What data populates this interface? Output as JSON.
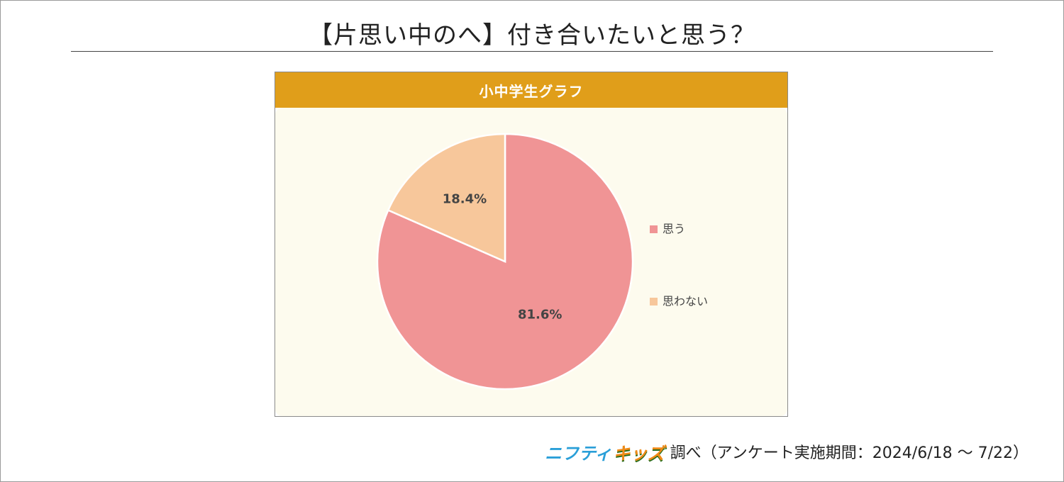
{
  "page": {
    "title": "【片思い中のへ】付き合いたいと思う？",
    "border_color": "#9a9a9a"
  },
  "panel": {
    "header": "小中学生グラフ",
    "header_color": "#e09e1a",
    "background_color": "#fdfbee"
  },
  "chart_data": {
    "type": "pie",
    "title": "小中学生グラフ",
    "start_angle_deg": 0,
    "direction": "clockwise",
    "legend_position": "right",
    "slices": [
      {
        "label": "思う",
        "value": 81.6,
        "display": "81.6%",
        "color": "#f09495"
      },
      {
        "label": "思わない",
        "value": 18.4,
        "display": "18.4%",
        "color": "#f7c79b"
      }
    ]
  },
  "footer": {
    "logo_part1": "ニフティ",
    "logo_part2": "キッズ",
    "source_text": "調べ（アンケート実施期間：2024/6/18 ～ 7/22）"
  }
}
